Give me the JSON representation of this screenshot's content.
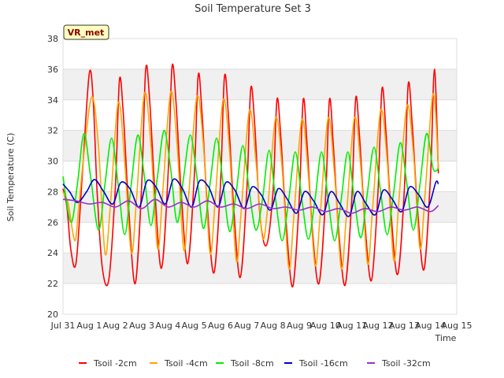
{
  "chart_data": {
    "type": "line",
    "title": "Soil Temperature Set 3",
    "xlabel": "Time",
    "ylabel": "Soil Temperature (C)",
    "badge": "VR_met",
    "ylim": [
      20,
      38
    ],
    "xlim": [
      0,
      15
    ],
    "y_ticks": [
      20,
      22,
      24,
      26,
      28,
      30,
      32,
      34,
      36,
      38
    ],
    "x_ticks": [
      {
        "pos": 0,
        "label": "Jul 31"
      },
      {
        "pos": 1,
        "label": "Aug 1"
      },
      {
        "pos": 2,
        "label": "Aug 2"
      },
      {
        "pos": 3,
        "label": "Aug 3"
      },
      {
        "pos": 4,
        "label": "Aug 4"
      },
      {
        "pos": 5,
        "label": "Aug 5"
      },
      {
        "pos": 6,
        "label": "Aug 6"
      },
      {
        "pos": 7,
        "label": "Aug 7"
      },
      {
        "pos": 8,
        "label": "Aug 8"
      },
      {
        "pos": 9,
        "label": "Aug 9"
      },
      {
        "pos": 10,
        "label": "Aug 10"
      },
      {
        "pos": 11,
        "label": "Aug 11"
      },
      {
        "pos": 12,
        "label": "Aug 12"
      },
      {
        "pos": 13,
        "label": "Aug 13"
      },
      {
        "pos": 14,
        "label": "Aug 14"
      },
      {
        "pos": 15,
        "label": "Aug 15"
      }
    ],
    "grid": true,
    "legend_position": "bottom",
    "series": [
      {
        "name": "Tsoil -2cm",
        "color": "#ff0000",
        "x": [
          0,
          0.15,
          0.3,
          0.5,
          0.75,
          1.0,
          1.15,
          1.3,
          1.5,
          1.75,
          2.0,
          2.15,
          2.3,
          2.5,
          2.75,
          3.0,
          3.15,
          3.3,
          3.5,
          3.75,
          4.0,
          4.15,
          4.3,
          4.5,
          4.75,
          5.0,
          5.15,
          5.3,
          5.5,
          5.75,
          6.0,
          6.15,
          6.3,
          6.5,
          6.75,
          7.0,
          7.15,
          7.3,
          7.5,
          7.75,
          8.0,
          8.15,
          8.3,
          8.5,
          8.75,
          9.0,
          9.15,
          9.3,
          9.5,
          9.75,
          10.0,
          10.15,
          10.3,
          10.5,
          10.75,
          11.0,
          11.15,
          11.3,
          11.5,
          11.75,
          12.0,
          12.15,
          12.3,
          12.5,
          12.75,
          13.0,
          13.15,
          13.3,
          13.5,
          13.75,
          14.0,
          14.15,
          14.3
        ],
        "values": [
          28.2,
          27.0,
          24.2,
          23.4,
          29.5,
          35.7,
          34.0,
          28.0,
          23.0,
          22.3,
          28.5,
          35.3,
          33.0,
          27.0,
          22.0,
          28.5,
          36.0,
          34.0,
          28.0,
          23.0,
          29.0,
          36.1,
          34.0,
          28.0,
          23.3,
          29.0,
          35.6,
          33.0,
          27.0,
          22.7,
          28.5,
          35.5,
          33.0,
          27.0,
          22.4,
          28.0,
          34.7,
          32.5,
          26.5,
          24.5,
          28.0,
          34.0,
          31.5,
          26.0,
          21.8,
          27.5,
          34.0,
          31.0,
          25.5,
          22.0,
          27.5,
          34.0,
          31.0,
          25.5,
          21.9,
          27.5,
          34.1,
          31.5,
          26.0,
          22.2,
          28.0,
          34.7,
          32.0,
          26.5,
          22.6,
          28.0,
          35.0,
          32.5,
          27.0,
          22.9,
          29.0,
          36.0,
          29.2
        ]
      },
      {
        "name": "Tsoil -4cm",
        "color": "#ffa500",
        "x": [
          0,
          0.2,
          0.45,
          0.6,
          0.8,
          1.1,
          1.35,
          1.6,
          1.8,
          2.1,
          2.35,
          2.6,
          2.8,
          3.1,
          3.35,
          3.6,
          3.8,
          4.1,
          4.35,
          4.6,
          4.8,
          5.1,
          5.35,
          5.6,
          5.8,
          6.1,
          6.35,
          6.6,
          6.8,
          7.1,
          7.35,
          7.6,
          7.8,
          8.1,
          8.35,
          8.6,
          8.8,
          9.1,
          9.35,
          9.6,
          9.8,
          10.1,
          10.35,
          10.6,
          10.8,
          11.1,
          11.35,
          11.6,
          11.8,
          12.1,
          12.35,
          12.6,
          12.8,
          13.1,
          13.35,
          13.6,
          13.8,
          14.1,
          14.3
        ],
        "values": [
          28.0,
          27.2,
          24.8,
          27.0,
          30.5,
          34.2,
          31.0,
          24.0,
          27.0,
          33.8,
          30.0,
          24.0,
          27.5,
          34.4,
          31.0,
          24.3,
          28.0,
          34.5,
          31.0,
          24.2,
          28.0,
          34.2,
          31.0,
          24.0,
          27.5,
          34.0,
          30.5,
          23.5,
          27.0,
          33.3,
          30.0,
          25.0,
          27.0,
          32.8,
          29.5,
          23.0,
          26.5,
          32.7,
          29.0,
          23.2,
          26.5,
          32.8,
          29.0,
          23.0,
          26.5,
          32.8,
          29.5,
          23.3,
          27.0,
          33.3,
          30.0,
          23.5,
          27.5,
          33.6,
          30.5,
          24.3,
          28.0,
          34.4,
          29.5
        ]
      },
      {
        "name": "Tsoil -8cm",
        "color": "#00ee00",
        "x": [
          0,
          0.3,
          0.55,
          0.8,
          1.05,
          1.35,
          1.6,
          1.85,
          2.1,
          2.35,
          2.6,
          2.85,
          3.1,
          3.35,
          3.6,
          3.85,
          4.1,
          4.35,
          4.6,
          4.85,
          5.1,
          5.35,
          5.6,
          5.85,
          6.1,
          6.35,
          6.6,
          6.85,
          7.1,
          7.35,
          7.6,
          7.85,
          8.1,
          8.35,
          8.6,
          8.85,
          9.1,
          9.35,
          9.6,
          9.85,
          10.1,
          10.35,
          10.6,
          10.85,
          11.1,
          11.35,
          11.6,
          11.85,
          12.1,
          12.35,
          12.6,
          12.85,
          13.1,
          13.35,
          13.6,
          13.85,
          14.1,
          14.3
        ],
        "values": [
          29.0,
          26.0,
          28.5,
          31.8,
          29.0,
          25.5,
          28.5,
          31.5,
          28.5,
          25.2,
          28.5,
          31.7,
          29.0,
          25.8,
          29.0,
          32.0,
          29.5,
          26.0,
          29.0,
          31.7,
          29.0,
          25.6,
          28.5,
          31.5,
          28.5,
          25.4,
          28.0,
          31.0,
          28.0,
          25.5,
          27.5,
          30.7,
          27.5,
          24.8,
          27.5,
          30.6,
          27.5,
          24.9,
          27.5,
          30.6,
          27.5,
          24.8,
          27.5,
          30.6,
          27.5,
          25.0,
          28.0,
          30.9,
          28.0,
          25.2,
          28.0,
          31.2,
          28.5,
          25.5,
          28.5,
          31.8,
          29.5,
          29.5
        ]
      },
      {
        "name": "Tsoil -16cm",
        "color": "#0000cc",
        "x": [
          0,
          0.25,
          0.55,
          0.9,
          1.2,
          1.55,
          1.9,
          2.2,
          2.55,
          2.9,
          3.2,
          3.55,
          3.9,
          4.2,
          4.55,
          4.9,
          5.2,
          5.55,
          5.9,
          6.2,
          6.55,
          6.9,
          7.2,
          7.55,
          7.9,
          8.2,
          8.55,
          8.9,
          9.2,
          9.55,
          9.9,
          10.2,
          10.55,
          10.9,
          11.2,
          11.55,
          11.9,
          12.2,
          12.55,
          12.9,
          13.2,
          13.55,
          13.9,
          14.2,
          14.3
        ],
        "values": [
          28.5,
          28.0,
          27.3,
          28.0,
          28.8,
          28.0,
          27.2,
          28.6,
          28.2,
          27.0,
          28.7,
          28.3,
          27.2,
          28.8,
          28.2,
          27.0,
          28.7,
          28.3,
          27.0,
          28.6,
          28.1,
          26.9,
          28.3,
          27.8,
          26.8,
          28.2,
          27.5,
          26.6,
          28.0,
          27.4,
          26.5,
          28.0,
          27.2,
          26.4,
          28.0,
          27.2,
          26.5,
          28.1,
          27.5,
          26.7,
          28.3,
          27.8,
          27.0,
          28.6,
          28.5
        ]
      },
      {
        "name": "Tsoil -32cm",
        "color": "#9932cc",
        "x": [
          0,
          0.5,
          1.0,
          1.5,
          2.0,
          2.5,
          3.0,
          3.5,
          4.0,
          4.5,
          5.0,
          5.5,
          6.0,
          6.5,
          7.0,
          7.5,
          8.0,
          8.5,
          9.0,
          9.5,
          10.0,
          10.5,
          11.0,
          11.5,
          12.0,
          12.5,
          13.0,
          13.5,
          14.0,
          14.3
        ],
        "values": [
          27.5,
          27.4,
          27.2,
          27.3,
          27.0,
          27.4,
          26.9,
          27.5,
          27.0,
          27.3,
          27.0,
          27.4,
          27.0,
          27.2,
          26.9,
          27.2,
          26.9,
          27.0,
          26.8,
          27.0,
          26.7,
          26.9,
          26.6,
          26.9,
          26.7,
          27.0,
          26.8,
          27.0,
          26.7,
          27.1
        ]
      }
    ]
  }
}
